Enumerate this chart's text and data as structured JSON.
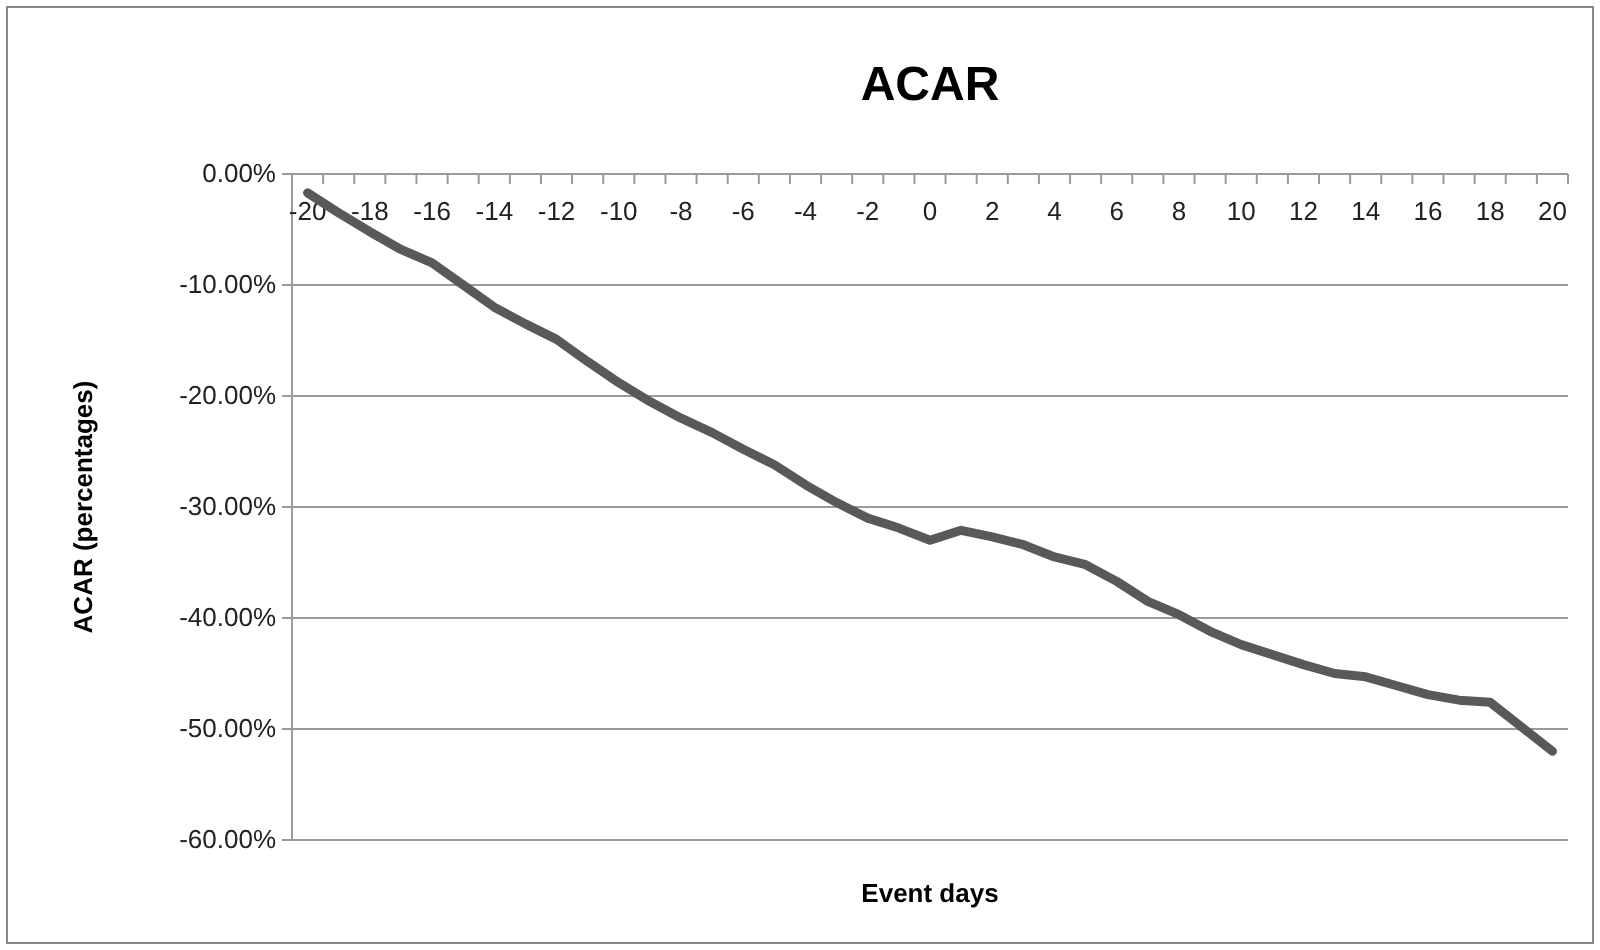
{
  "chart_data": {
    "type": "line",
    "title": "ACAR",
    "xlabel": "Event days",
    "ylabel": "ACAR  (percentages)",
    "categories": [
      "-20",
      null,
      "-18",
      null,
      "-16",
      null,
      "-14",
      null,
      "-12",
      null,
      "-10",
      null,
      "-8",
      null,
      "-6",
      null,
      "-4",
      null,
      "-2",
      null,
      "0",
      null,
      "2",
      null,
      "4",
      null,
      "6",
      null,
      "8",
      null,
      "10",
      null,
      "12",
      null,
      "14",
      null,
      "16",
      null,
      "18",
      null,
      "20"
    ],
    "series": [
      {
        "color": "#595959",
        "values": [
          -1.7,
          -3.5,
          -5.2,
          -6.8,
          -8.0,
          -10.0,
          -12.0,
          -13.5,
          -14.9,
          -16.9,
          -18.8,
          -20.5,
          -22.0,
          -23.3,
          -24.8,
          -26.2,
          -28.0,
          -29.6,
          -31.0,
          -31.9,
          -33.0,
          -32.1,
          -32.7,
          -33.4,
          -34.5,
          -35.2,
          -36.7,
          -38.5,
          -39.7,
          -41.2,
          -42.4,
          -43.3,
          -44.2,
          -45.0,
          -45.3,
          -46.1,
          -46.9,
          -47.4,
          -47.6,
          -49.8,
          -52.0
        ]
      }
    ],
    "ylim": [
      -60,
      0
    ],
    "yticks": [
      {
        "value": 0,
        "label": "0.00%"
      },
      {
        "value": -10,
        "label": "-10.00%"
      },
      {
        "value": -20,
        "label": "-20.00%"
      },
      {
        "value": -30,
        "label": "-30.00%"
      },
      {
        "value": -40,
        "label": "-40.00%"
      },
      {
        "value": -50,
        "label": "-50.00%"
      },
      {
        "value": -60,
        "label": "-60.00%"
      }
    ],
    "grid": "y",
    "legend": false,
    "marker": "none",
    "line_style": "solid"
  }
}
